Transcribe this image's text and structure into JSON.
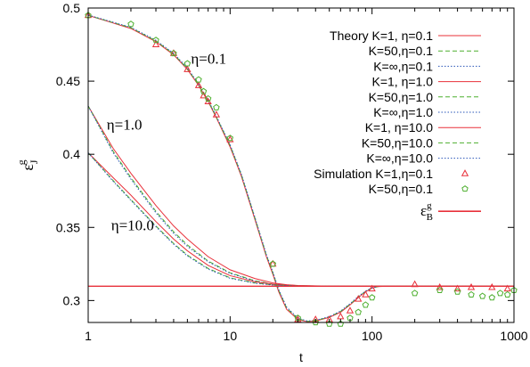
{
  "chart_data": {
    "type": "line",
    "title": "",
    "xlabel": "t",
    "ylabel_symbol": "ε",
    "ylabel_sup": "g",
    "ylabel_sub": "J",
    "x_scale": "log",
    "xlim": [
      1,
      1000
    ],
    "ylim": [
      0.285,
      0.5
    ],
    "x_ticks": [
      1,
      10,
      100,
      1000
    ],
    "x_tick_labels": [
      "1",
      "10",
      "100",
      "1000"
    ],
    "y_ticks": [
      0.3,
      0.35,
      0.4,
      0.45,
      0.5
    ],
    "y_tick_labels": [
      "0.3",
      "0.35",
      "0.4",
      "0.45",
      "0.5"
    ],
    "grid": false,
    "legend_position": "top-right",
    "colors": {
      "red": "#e8303a",
      "green": "#4daf2e",
      "blue": "#2a56b8"
    },
    "annotations": [
      {
        "text": "η=0.1",
        "x": 5.3,
        "y": 0.462
      },
      {
        "text": "η=1.0",
        "x": 1.35,
        "y": 0.417
      },
      {
        "text": "η=10.0",
        "x": 1.45,
        "y": 0.348
      }
    ],
    "series": [
      {
        "name": "Theory K=1, η=0.1",
        "color": "#e8303a",
        "style": "solid",
        "x": [
          1,
          2,
          3,
          4,
          5,
          6,
          7,
          8,
          10,
          12,
          15,
          18,
          20,
          22,
          25,
          30,
          35,
          40,
          50,
          60,
          70,
          80,
          90,
          100,
          110,
          130,
          150,
          200,
          300,
          500,
          1000
        ],
        "y": [
          0.495,
          0.486,
          0.477,
          0.468,
          0.458,
          0.447,
          0.436,
          0.425,
          0.405,
          0.385,
          0.355,
          0.33,
          0.318,
          0.306,
          0.294,
          0.287,
          0.2855,
          0.286,
          0.2885,
          0.292,
          0.297,
          0.302,
          0.306,
          0.3085,
          0.3095,
          0.3098,
          0.3098,
          0.3098,
          0.3098,
          0.3098,
          0.3098
        ]
      },
      {
        "name": "K=50,η=0.1",
        "color": "#4daf2e",
        "style": "dashed",
        "x": [
          1,
          2,
          3,
          4,
          5,
          6,
          7,
          8,
          10,
          12,
          15,
          18,
          20,
          22,
          25,
          30,
          35,
          40,
          50,
          60,
          70,
          80,
          90,
          100,
          110,
          130,
          150,
          200,
          300,
          500,
          1000
        ],
        "y": [
          0.495,
          0.4865,
          0.4775,
          0.4685,
          0.4585,
          0.4475,
          0.4365,
          0.4255,
          0.406,
          0.386,
          0.356,
          0.331,
          0.319,
          0.307,
          0.295,
          0.2875,
          0.2858,
          0.2862,
          0.2888,
          0.2925,
          0.2975,
          0.3025,
          0.3062,
          0.3086,
          0.3096,
          0.3098,
          0.3098,
          0.3098,
          0.3098,
          0.3098,
          0.3098
        ]
      },
      {
        "name": "K=∞,η=0.1",
        "color": "#2a56b8",
        "style": "dotted",
        "x": [
          1,
          2,
          3,
          4,
          5,
          6,
          7,
          8,
          10,
          12,
          15,
          18,
          20,
          22,
          25,
          30,
          35,
          40,
          50,
          60,
          70,
          80,
          90,
          100,
          110,
          130,
          150,
          200,
          300,
          500,
          1000
        ],
        "y": [
          0.4952,
          0.4868,
          0.478,
          0.469,
          0.459,
          0.448,
          0.437,
          0.426,
          0.4065,
          0.3865,
          0.3565,
          0.3315,
          0.3195,
          0.3075,
          0.2955,
          0.288,
          0.286,
          0.2865,
          0.289,
          0.2928,
          0.2978,
          0.3028,
          0.3064,
          0.3087,
          0.3096,
          0.3098,
          0.3098,
          0.3098,
          0.3098,
          0.3098,
          0.3098
        ]
      },
      {
        "name": "K=1, η=1.0",
        "color": "#e8303a",
        "style": "solid",
        "x": [
          1,
          1.5,
          2,
          3,
          4,
          5,
          7,
          10,
          15,
          20,
          25,
          30,
          40,
          50,
          70,
          100,
          200,
          1000
        ],
        "y": [
          0.433,
          0.404,
          0.387,
          0.365,
          0.351,
          0.342,
          0.33,
          0.321,
          0.315,
          0.312,
          0.3108,
          0.3103,
          0.31,
          0.3099,
          0.3098,
          0.3098,
          0.3098,
          0.3098
        ]
      },
      {
        "name": "K=50,η=1.0",
        "color": "#4daf2e",
        "style": "dashed",
        "x": [
          1,
          1.5,
          2,
          3,
          4,
          5,
          7,
          10,
          15,
          20,
          25,
          30,
          40,
          50,
          70,
          100,
          200,
          1000
        ],
        "y": [
          0.433,
          0.402,
          0.384,
          0.361,
          0.347,
          0.338,
          0.327,
          0.319,
          0.3135,
          0.3112,
          0.3103,
          0.31,
          0.3099,
          0.3098,
          0.3098,
          0.3098,
          0.3098,
          0.3098
        ]
      },
      {
        "name": "K=∞,η=1.0",
        "color": "#2a56b8",
        "style": "dotted",
        "x": [
          1,
          1.5,
          2,
          3,
          4,
          5,
          7,
          10,
          15,
          20,
          25,
          30,
          40,
          50,
          70,
          100,
          200,
          1000
        ],
        "y": [
          0.433,
          0.401,
          0.383,
          0.36,
          0.346,
          0.337,
          0.3265,
          0.3185,
          0.3132,
          0.311,
          0.3102,
          0.31,
          0.3099,
          0.3098,
          0.3098,
          0.3098,
          0.3098,
          0.3098
        ]
      },
      {
        "name": "K=1, η=10.0",
        "color": "#e8303a",
        "style": "solid",
        "x": [
          1,
          1.5,
          2,
          3,
          4,
          5,
          7,
          10,
          15,
          20,
          30,
          50,
          100,
          1000
        ],
        "y": [
          0.401,
          0.384,
          0.372,
          0.354,
          0.342,
          0.334,
          0.324,
          0.317,
          0.3128,
          0.3112,
          0.3102,
          0.3099,
          0.3098,
          0.3098
        ]
      },
      {
        "name": "K=50,η=10.0",
        "color": "#4daf2e",
        "style": "dashed",
        "x": [
          1,
          1.5,
          2,
          3,
          4,
          5,
          7,
          10,
          15,
          20,
          30,
          50,
          100,
          1000
        ],
        "y": [
          0.401,
          0.382,
          0.369,
          0.351,
          0.339,
          0.331,
          0.322,
          0.3155,
          0.312,
          0.3107,
          0.31,
          0.3098,
          0.3098,
          0.3098
        ]
      },
      {
        "name": "K=∞,η=10.0",
        "color": "#2a56b8",
        "style": "dotted",
        "x": [
          1,
          1.5,
          2,
          3,
          4,
          5,
          7,
          10,
          15,
          20,
          30,
          50,
          100,
          1000
        ],
        "y": [
          0.401,
          0.3815,
          0.3685,
          0.3505,
          0.3385,
          0.3305,
          0.3215,
          0.3152,
          0.3118,
          0.3106,
          0.31,
          0.3098,
          0.3098,
          0.3098
        ]
      },
      {
        "name": "Simulation K=1,η=0.1",
        "color": "#e8303a",
        "marker": "triangle",
        "x": [
          1,
          3,
          4,
          5,
          6,
          6.5,
          7,
          8,
          10,
          20,
          30,
          40,
          50,
          60,
          70,
          80,
          90,
          100,
          200,
          300,
          400,
          500,
          700,
          900
        ],
        "y": [
          0.495,
          0.475,
          0.469,
          0.458,
          0.447,
          0.44,
          0.436,
          0.427,
          0.41,
          0.325,
          0.287,
          0.287,
          0.287,
          0.289,
          0.293,
          0.301,
          0.304,
          0.308,
          0.311,
          0.309,
          0.308,
          0.309,
          0.309,
          0.308
        ]
      },
      {
        "name": "K=50,η=0.1",
        "color": "#4daf2e",
        "marker": "pentagon",
        "x": [
          1,
          2,
          3,
          4,
          5,
          6,
          6.5,
          7,
          8,
          10,
          20,
          30,
          40,
          50,
          60,
          70,
          80,
          90,
          100,
          200,
          300,
          400,
          500,
          600,
          700,
          800,
          900,
          1000
        ],
        "y": [
          0.495,
          0.489,
          0.478,
          0.469,
          0.462,
          0.451,
          0.443,
          0.438,
          0.432,
          0.411,
          0.325,
          0.288,
          0.285,
          0.284,
          0.284,
          0.288,
          0.292,
          0.297,
          0.302,
          0.305,
          0.307,
          0.306,
          0.304,
          0.303,
          0.302,
          0.305,
          0.304,
          0.307
        ]
      },
      {
        "name": "ε_B^g",
        "label_symbol": "ε",
        "label_sup": "g",
        "label_sub": "B",
        "color": "#e8303a",
        "style": "solid-thick",
        "x": [
          1,
          1000
        ],
        "y": [
          0.3098,
          0.3098
        ]
      }
    ]
  }
}
